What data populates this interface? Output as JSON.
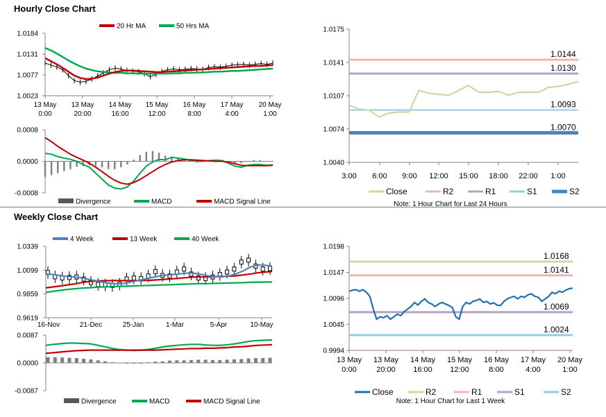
{
  "sections": {
    "hourly_title": "Hourly Close Chart",
    "weekly_title": "Weekly Close Chart"
  },
  "colors": {
    "ma_red": "#C00000",
    "ma_green": "#00A850",
    "blue_ma": "#4F81BD",
    "close_green": "#C4DDA3",
    "r2": "#F0B4B4",
    "r1": "#B3A2C7",
    "s1": "#92CDDC",
    "s2": "#4F81BD",
    "close_blue": "#1F6FB2",
    "r2_weekly": "#C4DDA3",
    "r1_weekly": "#F0B4B4",
    "s1_weekly": "#B3A2C7",
    "s2_weekly": "#92CDDC"
  },
  "chart_data": [
    {
      "id": "hourly_price",
      "type": "line",
      "legend": [
        "20 Hr MA",
        "50 Hrs MA"
      ],
      "y_ticks": [
        "1.0184",
        "1.0131",
        "1.0077",
        "1.0023"
      ],
      "ylim": [
        1.0023,
        1.0184
      ],
      "x_ticks": [
        [
          "13 May",
          "0:00"
        ],
        [
          "13 May",
          "20:00"
        ],
        [
          "14 May",
          "16:00"
        ],
        [
          "15 May",
          "12:00"
        ],
        [
          "16 May",
          "8:00"
        ],
        [
          "17 May",
          "4:00"
        ],
        [
          "20 May",
          "1:00"
        ]
      ],
      "close": [
        1.0107,
        1.0102,
        1.0097,
        1.009,
        1.0075,
        1.0062,
        1.0058,
        1.006,
        1.0066,
        1.0074,
        1.0082,
        1.009,
        1.0094,
        1.0092,
        1.0088,
        1.0086,
        1.0085,
        1.008,
        1.0072,
        1.0078,
        1.0086,
        1.009,
        1.0092,
        1.009,
        1.0091,
        1.0093,
        1.0092,
        1.0091,
        1.0096,
        1.0098,
        1.0097,
        1.0099,
        1.0102,
        1.0103,
        1.0104,
        1.0102,
        1.0104,
        1.0106,
        1.0104,
        1.0107
      ],
      "ma20": [
        1.012,
        1.0112,
        1.0104,
        1.0095,
        1.0085,
        1.0075,
        1.0069,
        1.0066,
        1.0067,
        1.007,
        1.0075,
        1.008,
        1.0084,
        1.0087,
        1.0088,
        1.0088,
        1.0087,
        1.0086,
        1.0085,
        1.0084,
        1.0084,
        1.0085,
        1.0086,
        1.0087,
        1.0088,
        1.0089,
        1.009,
        1.0091,
        1.0092,
        1.0093,
        1.0094,
        1.0095,
        1.0096,
        1.0097,
        1.0098,
        1.0099,
        1.01,
        1.01,
        1.0101,
        1.0102
      ],
      "ma50": [
        1.0146,
        1.014,
        1.0132,
        1.0123,
        1.0114,
        1.0106,
        1.0099,
        1.0093,
        1.0089,
        1.0086,
        1.0084,
        1.0083,
        1.0082,
        1.0082,
        1.0081,
        1.0081,
        1.008,
        1.008,
        1.008,
        1.008,
        1.008,
        1.008,
        1.0081,
        1.0081,
        1.0082,
        1.0082,
        1.0083,
        1.0083,
        1.0084,
        1.0085,
        1.0085,
        1.0086,
        1.0087,
        1.0087,
        1.0088,
        1.0089,
        1.009,
        1.0091,
        1.0092,
        1.0093
      ]
    },
    {
      "id": "hourly_macd",
      "type": "line",
      "legend": [
        "Divergence",
        "MACD",
        "MACD Signal Line"
      ],
      "y_ticks": [
        "0.0008",
        "0.0000",
        "-0.0008"
      ],
      "ylim": [
        -0.0008,
        0.0008
      ],
      "macd": [
        0.0002,
        0.00018,
        0.00012,
        8e-05,
        5e-05,
        0.0,
        -8e-05,
        -0.00015,
        -0.0003,
        -0.00045,
        -0.0006,
        -0.00068,
        -0.0007,
        -0.00065,
        -0.0005,
        -0.0003,
        -0.00012,
        -2e-05,
        5e-05,
        4e-05,
        0.0001,
        8e-05,
        6e-05,
        2e-05,
        0.0,
        0.0,
        2e-05,
        3e-05,
        2e-05,
        -5e-05,
        -0.00012,
        -0.00015,
        -0.0001,
        -8e-05,
        -8e-05,
        -0.0001,
        -9e-05
      ],
      "signal": [
        0.0006,
        0.0005,
        0.00038,
        0.00028,
        0.00018,
        0.0001,
        3e-05,
        -5e-05,
        -0.00015,
        -0.00026,
        -0.00038,
        -0.00048,
        -0.00055,
        -0.00058,
        -0.00054,
        -0.00046,
        -0.00036,
        -0.00026,
        -0.00016,
        -8e-05,
        -2e-05,
        2e-05,
        4e-05,
        4e-05,
        3e-05,
        2e-05,
        1e-05,
        0.0,
        0.0,
        -2e-05,
        -6e-05,
        -0.0001,
        -0.00011,
        -0.00011,
        -0.00011,
        -0.00011,
        -0.0001
      ],
      "divergence": [
        -0.0004,
        -0.00035,
        -0.0003,
        -0.00025,
        -0.0002,
        -0.00014,
        -0.00012,
        -0.0001,
        -0.00012,
        -0.00015,
        -0.0002,
        -0.0002,
        -0.00015,
        -8e-05,
        4e-05,
        0.00016,
        0.00024,
        0.00026,
        0.00022,
        0.00014,
        0.00012,
        8e-05,
        4e-05,
        0.0,
        -3e-05,
        -2e-05,
        1e-05,
        3e-05,
        2e-05,
        -3e-05,
        -6e-05,
        -5e-05,
        1e-05,
        3e-05,
        3e-05,
        1e-05,
        1e-05
      ]
    },
    {
      "id": "hourly_pivot",
      "type": "line",
      "y_ticks": [
        "1.0175",
        "1.0141",
        "1.0107",
        "1.0074",
        "1.0040"
      ],
      "ylim": [
        1.004,
        1.0175
      ],
      "x_ticks": [
        "3:00",
        "6:00",
        "9:00",
        "12:00",
        "15:00",
        "18:00",
        "22:00",
        "1:00"
      ],
      "close": [
        1.0098,
        1.0094,
        1.0093,
        1.0086,
        1.009,
        1.0091,
        1.0091,
        1.0113,
        1.011,
        1.0109,
        1.0108,
        1.0113,
        1.0118,
        1.0111,
        1.0111,
        1.0112,
        1.0108,
        1.0111,
        1.0111,
        1.0111,
        1.0116,
        1.0117,
        1.0119,
        1.0122
      ],
      "levels": {
        "R2": 1.0144,
        "R1": 1.013,
        "S1": 1.0093,
        "S2": 1.007
      },
      "level_labels": [
        "1.0144",
        "1.0130",
        "1.0093",
        "1.0070"
      ],
      "legend": [
        "Close",
        "R2",
        "R1",
        "S1",
        "S2"
      ],
      "note": "Note: 1 Hour Chart for Last 24 Hours"
    },
    {
      "id": "weekly_price",
      "type": "line",
      "legend": [
        "4 Week",
        "13 Week",
        "40 Week"
      ],
      "y_ticks": [
        "1.0339",
        "1.0099",
        "0.9859",
        "0.9619"
      ],
      "ylim": [
        0.9619,
        1.0339
      ],
      "x_ticks": [
        "16-Nov",
        "21-Dec",
        "25-Jan",
        "1-Mar",
        "5-Apr",
        "10-May"
      ],
      "close": [
        1.0075,
        1.0032,
        1.002,
        1.0025,
        1.003,
        1.001,
        0.9975,
        0.9955,
        0.995,
        0.9945,
        0.9958,
        1.001,
        1.002,
        1.0015,
        1.004,
        1.0085,
        1.0045,
        1.004,
        1.008,
        1.011,
        1.006,
        1.002,
        1.0015,
        1.003,
        1.0055,
        1.008,
        1.011,
        1.018,
        1.02,
        1.014,
        1.011,
        1.0115
      ],
      "wk4": [
        1.006,
        1.0055,
        1.0045,
        1.0035,
        1.003,
        1.002,
        1.0005,
        0.999,
        0.9975,
        0.9965,
        0.996,
        0.9968,
        0.9985,
        1.0,
        1.0015,
        1.0032,
        1.0045,
        1.0052,
        1.0058,
        1.0068,
        1.007,
        1.006,
        1.0045,
        1.0035,
        1.003,
        1.004,
        1.006,
        1.009,
        1.013,
        1.015,
        1.0148,
        1.014
      ],
      "wk13": [
        0.992,
        0.993,
        0.994,
        0.995,
        0.996,
        0.9975,
        0.9985,
        0.999,
        0.9992,
        0.9994,
        0.9994,
        0.9993,
        0.9993,
        0.9994,
        0.9996,
        1.0,
        1.0005,
        1.001,
        1.0015,
        1.0022,
        1.0028,
        1.003,
        1.003,
        1.0032,
        1.0035,
        1.0038,
        1.0042,
        1.005,
        1.006,
        1.0072,
        1.008,
        1.0085
      ],
      "wk40": [
        0.9875,
        0.9885,
        0.9895,
        0.9905,
        0.9912,
        0.9918,
        0.9922,
        0.9927,
        0.993,
        0.9933,
        0.9935,
        0.9937,
        0.994,
        0.9942,
        0.9945,
        0.9947,
        0.995,
        0.9952,
        0.9955,
        0.9958,
        0.996,
        0.9962,
        0.9963,
        0.9965,
        0.9967,
        0.9969,
        0.9971,
        0.9973,
        0.9976,
        0.9978,
        0.9979,
        0.998
      ]
    },
    {
      "id": "weekly_macd",
      "type": "line",
      "legend": [
        "Divergence",
        "MACD",
        "MACD Signal Line"
      ],
      "y_ticks": [
        "0.0087",
        "0.0000",
        "-0.0087"
      ],
      "ylim": [
        -0.0087,
        0.0087
      ],
      "macd": [
        0.0055,
        0.0058,
        0.006,
        0.0062,
        0.0062,
        0.0061,
        0.006,
        0.0056,
        0.0051,
        0.0046,
        0.0042,
        0.004,
        0.0039,
        0.004,
        0.0042,
        0.0046,
        0.005,
        0.0053,
        0.0055,
        0.0057,
        0.0058,
        0.0058,
        0.0056,
        0.0055,
        0.0055,
        0.0057,
        0.006,
        0.0064,
        0.0068,
        0.007,
        0.0071,
        0.0072
      ],
      "signal": [
        0.003,
        0.0032,
        0.0034,
        0.0036,
        0.0038,
        0.0039,
        0.004,
        0.004,
        0.004,
        0.004,
        0.004,
        0.004,
        0.004,
        0.004,
        0.004,
        0.004,
        0.0041,
        0.0042,
        0.0043,
        0.0044,
        0.0045,
        0.0045,
        0.0046,
        0.0046,
        0.0047,
        0.0048,
        0.005,
        0.0051,
        0.0053,
        0.0055,
        0.0056,
        0.0057
      ],
      "divergence": [
        0.0018,
        0.0018,
        0.0017,
        0.0016,
        0.0015,
        0.0013,
        0.0011,
        0.0008,
        0.0005,
        0.0002,
        0.0001,
        0.0,
        -0.0001,
        0.0,
        0.0002,
        0.0004,
        0.0005,
        0.0007,
        0.0008,
        0.0008,
        0.0009,
        0.001,
        0.001,
        0.0009,
        0.0009,
        0.001,
        0.0011,
        0.0012,
        0.0014,
        0.0015,
        0.0015,
        0.0016
      ]
    },
    {
      "id": "weekly_pivot",
      "type": "line",
      "y_ticks": [
        "1.0198",
        "1.0147",
        "1.0096",
        "1.0045",
        "0.9994"
      ],
      "ylim": [
        0.9994,
        1.0198
      ],
      "x_ticks": [
        [
          "13 May",
          "0:00"
        ],
        [
          "13 May",
          "20:00"
        ],
        [
          "14 May",
          "16:00"
        ],
        [
          "15 May",
          "12:00"
        ],
        [
          "16 May",
          "8:00"
        ],
        [
          "17 May",
          "4:00"
        ],
        [
          "20 May",
          "1:00"
        ]
      ],
      "close": [
        1.011,
        1.0112,
        1.0113,
        1.011,
        1.0113,
        1.0108,
        1.01,
        1.0075,
        1.0055,
        1.006,
        1.0058,
        1.0062,
        1.0055,
        1.006,
        1.0065,
        1.0062,
        1.007,
        1.0075,
        1.008,
        1.0088,
        1.0083,
        1.009,
        1.0095,
        1.0088,
        1.0085,
        1.008,
        1.0085,
        1.0088,
        1.0085,
        1.0082,
        1.0078,
        1.006,
        1.0055,
        1.008,
        1.0088,
        1.0085,
        1.009,
        1.0092,
        1.0095,
        1.0088,
        1.009,
        1.0085,
        1.0087,
        1.0083,
        1.0082,
        1.009,
        1.0095,
        1.0098,
        1.01,
        1.0095,
        1.01,
        1.0098,
        1.0103,
        1.0105,
        1.01,
        1.0098,
        1.009,
        1.0095,
        1.01,
        1.0108,
        1.0105,
        1.011,
        1.0108,
        1.0112,
        1.0115,
        1.0116
      ],
      "levels": {
        "R2": 1.0168,
        "R1": 1.0141,
        "S1": 1.0069,
        "S2": 1.0024
      },
      "level_labels": [
        "1.0168",
        "1.0141",
        "1.0069",
        "1.0024"
      ],
      "legend": [
        "Close",
        "R2",
        "R1",
        "S1",
        "S2"
      ],
      "note": "Note: 1 Hour Chart for Last 1 Week"
    }
  ]
}
